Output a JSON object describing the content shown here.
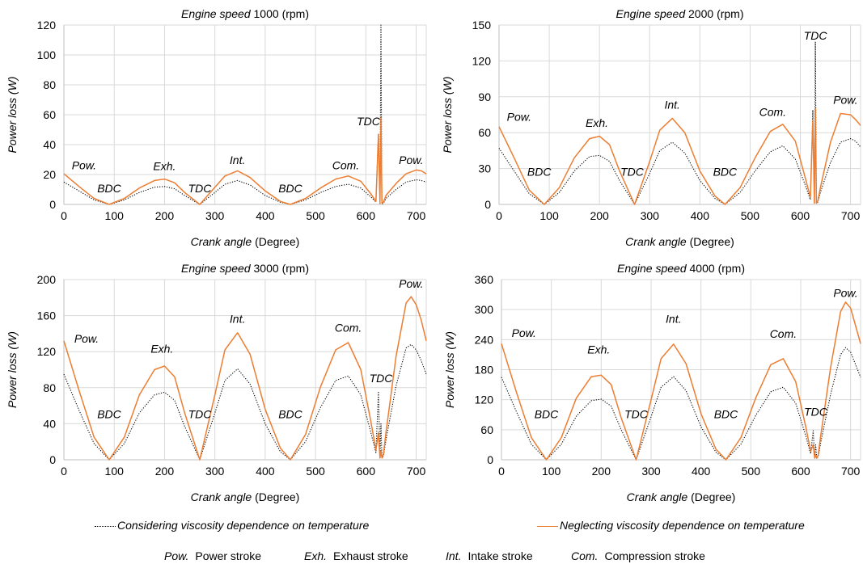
{
  "chart_data": [
    {
      "type": "line",
      "title_italic": "Engine speed",
      "title_number": "1000",
      "title_unit": "(rpm)",
      "ylabel": "Power loss (W)",
      "xlabel_italic": "Crank angle",
      "xlabel_unit": "(Degree)",
      "xlim": [
        0,
        720
      ],
      "ylim": [
        0,
        120
      ],
      "xticks": [
        0,
        100,
        200,
        300,
        400,
        500,
        600,
        700
      ],
      "yticks": [
        0,
        20,
        40,
        60,
        80,
        100,
        120
      ],
      "grid": true,
      "series": [
        {
          "name": "Considering viscosity dependence on temperature",
          "style": "dotted",
          "color": "#000000",
          "x": [
            0,
            30,
            60,
            90,
            120,
            150,
            180,
            200,
            220,
            240,
            270,
            300,
            320,
            345,
            370,
            400,
            430,
            450,
            480,
            510,
            540,
            565,
            590,
            610,
            620,
            625,
            628,
            630,
            632,
            635,
            640,
            660,
            680,
            700,
            710,
            720
          ],
          "y": [
            15,
            9,
            3,
            0,
            3,
            8,
            11.5,
            12,
            10.5,
            6,
            0,
            8,
            13.5,
            16,
            13,
            6,
            1.5,
            0,
            3,
            8,
            12,
            13.5,
            11,
            5,
            1.5,
            47,
            0.5,
            120,
            0.5,
            0.8,
            4,
            10,
            15,
            16.5,
            16,
            15
          ]
        },
        {
          "name": "Neglecting viscosity dependence on temperature",
          "style": "solid",
          "color": "#ED7D31",
          "x": [
            0,
            30,
            60,
            90,
            120,
            150,
            180,
            200,
            220,
            240,
            270,
            300,
            320,
            345,
            370,
            400,
            430,
            450,
            480,
            510,
            540,
            565,
            590,
            610,
            620,
            625,
            628,
            630,
            632,
            635,
            640,
            660,
            680,
            700,
            710,
            720
          ],
          "y": [
            20.5,
            12,
            4,
            0,
            4,
            11,
            16,
            17,
            14.5,
            8,
            0,
            11.5,
            19,
            22.5,
            18,
            9,
            2,
            0,
            4,
            11,
            17,
            19,
            15.5,
            7,
            2,
            47,
            0.5,
            58,
            1,
            1.5,
            6,
            14,
            20.5,
            23,
            22.5,
            20.5
          ]
        }
      ],
      "annotations": [
        {
          "text": "Pow.",
          "x": 40,
          "y": 23.5
        },
        {
          "text": "BDC",
          "x": 90,
          "y": 8
        },
        {
          "text": "Exh.",
          "x": 200,
          "y": 23
        },
        {
          "text": "TDC",
          "x": 270,
          "y": 8
        },
        {
          "text": "Int.",
          "x": 345,
          "y": 27
        },
        {
          "text": "BDC",
          "x": 450,
          "y": 8
        },
        {
          "text": "Com.",
          "x": 560,
          "y": 23.5
        },
        {
          "text": "TDC",
          "x": 605,
          "y": 53
        },
        {
          "text": "Pow.",
          "x": 690,
          "y": 27
        }
      ]
    },
    {
      "type": "line",
      "title_italic": "Engine speed",
      "title_number": "2000",
      "title_unit": "(rpm)",
      "ylabel": "Power loss (W)",
      "xlabel_italic": "Crank angle",
      "xlabel_unit": "(Degree)",
      "xlim": [
        0,
        720
      ],
      "ylim": [
        0,
        150
      ],
      "xticks": [
        0,
        100,
        200,
        300,
        400,
        500,
        600,
        700
      ],
      "yticks": [
        0,
        30,
        60,
        90,
        120,
        150
      ],
      "grid": true,
      "series": [
        {
          "name": "Considering viscosity dependence on temperature",
          "style": "dotted",
          "color": "#000000",
          "x": [
            0,
            30,
            60,
            90,
            120,
            150,
            180,
            200,
            220,
            240,
            270,
            300,
            320,
            345,
            370,
            400,
            430,
            450,
            480,
            510,
            540,
            565,
            590,
            610,
            620,
            625,
            628,
            630,
            632,
            635,
            640,
            660,
            680,
            700,
            710,
            720
          ],
          "y": [
            47,
            28,
            9,
            0,
            10,
            28,
            40,
            41,
            36,
            20,
            0,
            26,
            45,
            52,
            43,
            20,
            5,
            0,
            10,
            28,
            44,
            49,
            38,
            16,
            4,
            79,
            1,
            136,
            1,
            2,
            10,
            35,
            52,
            55,
            53,
            48
          ]
        },
        {
          "name": "Neglecting viscosity dependence on temperature",
          "style": "solid",
          "color": "#ED7D31",
          "x": [
            0,
            30,
            60,
            90,
            120,
            150,
            180,
            200,
            220,
            240,
            270,
            300,
            320,
            345,
            370,
            400,
            430,
            450,
            480,
            510,
            540,
            565,
            590,
            610,
            620,
            625,
            628,
            630,
            632,
            635,
            640,
            660,
            680,
            700,
            710,
            720
          ],
          "y": [
            65,
            39,
            12,
            0,
            14,
            39,
            55,
            57,
            50,
            28,
            0,
            36,
            62,
            72,
            60,
            28,
            7,
            0,
            14,
            39,
            61,
            67,
            53,
            22,
            6,
            70,
            1,
            80,
            1,
            3,
            14,
            52,
            76,
            75,
            71,
            66
          ]
        }
      ],
      "annotations": [
        {
          "text": "Pow.",
          "x": 40,
          "y": 70
        },
        {
          "text": "BDC",
          "x": 80,
          "y": 24
        },
        {
          "text": "Exh.",
          "x": 195,
          "y": 65
        },
        {
          "text": "TDC",
          "x": 265,
          "y": 24
        },
        {
          "text": "Int.",
          "x": 345,
          "y": 80
        },
        {
          "text": "BDC",
          "x": 450,
          "y": 24
        },
        {
          "text": "Com.",
          "x": 545,
          "y": 74
        },
        {
          "text": "TDC",
          "x": 630,
          "y": 138
        },
        {
          "text": "Pow.",
          "x": 690,
          "y": 84
        }
      ]
    },
    {
      "type": "line",
      "title_italic": "Engine speed",
      "title_number": "3000",
      "title_unit": "(rpm)",
      "ylabel": "Power loss (W)",
      "xlabel_italic": "Crank angle",
      "xlabel_unit": "(Degree)",
      "xlim": [
        0,
        720
      ],
      "ylim": [
        0,
        200
      ],
      "xticks": [
        0,
        100,
        200,
        300,
        400,
        500,
        600,
        700
      ],
      "yticks": [
        0,
        40,
        80,
        120,
        160,
        200
      ],
      "grid": true,
      "series": [
        {
          "name": "Considering viscosity dependence on temperature",
          "style": "dotted",
          "color": "#000000",
          "x": [
            0,
            30,
            60,
            90,
            120,
            150,
            180,
            200,
            220,
            240,
            270,
            300,
            320,
            345,
            370,
            400,
            430,
            450,
            480,
            510,
            540,
            565,
            590,
            610,
            620,
            625,
            628,
            630,
            632,
            635,
            640,
            660,
            680,
            690,
            700,
            710,
            720
          ],
          "y": [
            95,
            55,
            18,
            0,
            18,
            52,
            72,
            75,
            66,
            37,
            0,
            52,
            88,
            101,
            84,
            40,
            9,
            0,
            20,
            58,
            88,
            93,
            72,
            30,
            8,
            76,
            2,
            40,
            2,
            4,
            22,
            82,
            124,
            128,
            122,
            110,
            95
          ]
        },
        {
          "name": "Neglecting viscosity dependence on temperature",
          "style": "solid",
          "color": "#ED7D31",
          "x": [
            0,
            30,
            60,
            90,
            120,
            150,
            180,
            200,
            220,
            240,
            270,
            300,
            320,
            345,
            370,
            400,
            430,
            450,
            480,
            510,
            540,
            565,
            590,
            610,
            620,
            625,
            628,
            630,
            632,
            635,
            640,
            660,
            680,
            690,
            700,
            710,
            720
          ],
          "y": [
            132,
            77,
            25,
            0,
            25,
            72,
            100,
            104,
            92,
            52,
            0,
            72,
            122,
            141,
            117,
            56,
            13,
            0,
            28,
            81,
            122,
            130,
            100,
            42,
            11,
            30,
            2,
            10,
            2,
            6,
            30,
            115,
            174,
            181,
            172,
            155,
            132
          ]
        }
      ],
      "annotations": [
        {
          "text": "Pow.",
          "x": 45,
          "y": 130
        },
        {
          "text": "BDC",
          "x": 90,
          "y": 46
        },
        {
          "text": "Exh.",
          "x": 195,
          "y": 119
        },
        {
          "text": "TDC",
          "x": 270,
          "y": 46
        },
        {
          "text": "Int.",
          "x": 345,
          "y": 152
        },
        {
          "text": "BDC",
          "x": 450,
          "y": 46
        },
        {
          "text": "Com.",
          "x": 565,
          "y": 142
        },
        {
          "text": "TDC",
          "x": 630,
          "y": 86
        },
        {
          "text": "Pow.",
          "x": 690,
          "y": 191
        }
      ]
    },
    {
      "type": "line",
      "title_italic": "Engine speed",
      "title_number": "4000",
      "title_unit": "(rpm)",
      "ylabel": "Power loss (W)",
      "xlabel_italic": "Crank angle",
      "xlabel_unit": "(Degree)",
      "xlim": [
        0,
        720
      ],
      "ylim": [
        0,
        360
      ],
      "xticks": [
        0,
        100,
        200,
        300,
        400,
        500,
        600,
        700
      ],
      "yticks": [
        0,
        60,
        120,
        180,
        240,
        300,
        360
      ],
      "grid": true,
      "series": [
        {
          "name": "Considering viscosity dependence on temperature",
          "style": "dotted",
          "color": "#000000",
          "x": [
            0,
            30,
            60,
            90,
            120,
            150,
            180,
            200,
            220,
            240,
            270,
            300,
            320,
            345,
            370,
            400,
            430,
            450,
            480,
            510,
            540,
            565,
            590,
            610,
            620,
            625,
            628,
            630,
            632,
            635,
            640,
            660,
            680,
            690,
            700,
            710,
            720
          ],
          "y": [
            165,
            96,
            31,
            0,
            31,
            87,
            118,
            121,
            107,
            60,
            0,
            86,
            145,
            166,
            138,
            66,
            15,
            0,
            31,
            89,
            136,
            145,
            113,
            48,
            12,
            58,
            3,
            30,
            3,
            6,
            34,
            131,
            210,
            224,
            215,
            190,
            165
          ]
        },
        {
          "name": "Neglecting viscosity dependence on temperature",
          "style": "solid",
          "color": "#ED7D31",
          "x": [
            0,
            30,
            60,
            90,
            120,
            150,
            180,
            200,
            220,
            240,
            270,
            300,
            320,
            345,
            370,
            400,
            430,
            450,
            480,
            510,
            540,
            565,
            590,
            610,
            620,
            625,
            628,
            630,
            632,
            635,
            640,
            660,
            680,
            690,
            700,
            710,
            720
          ],
          "y": [
            232,
            135,
            44,
            0,
            44,
            123,
            166,
            169,
            150,
            84,
            0,
            120,
            202,
            231,
            192,
            92,
            21,
            0,
            44,
            124,
            190,
            202,
            156,
            66,
            17,
            30,
            3,
            10,
            3,
            9,
            48,
            185,
            296,
            315,
            303,
            268,
            232
          ]
        }
      ],
      "annotations": [
        {
          "text": "Pow.",
          "x": 45,
          "y": 245
        },
        {
          "text": "BDC",
          "x": 90,
          "y": 83
        },
        {
          "text": "Exh.",
          "x": 195,
          "y": 212
        },
        {
          "text": "TDC",
          "x": 270,
          "y": 83
        },
        {
          "text": "Int.",
          "x": 345,
          "y": 274
        },
        {
          "text": "BDC",
          "x": 450,
          "y": 83
        },
        {
          "text": "Com.",
          "x": 565,
          "y": 244
        },
        {
          "text": "TDC",
          "x": 630,
          "y": 88
        },
        {
          "text": "Pow.",
          "x": 690,
          "y": 325
        }
      ]
    }
  ],
  "legend": {
    "dotted_label": "Considering viscosity dependence on temperature",
    "solid_label": "Neglecting viscosity dependence on temperature"
  },
  "abbreviations": [
    {
      "abbr": "Pow.",
      "meaning": "Power stroke"
    },
    {
      "abbr": "Exh.",
      "meaning": "Exhaust stroke"
    },
    {
      "abbr": "Int.",
      "meaning": "Intake stroke"
    },
    {
      "abbr": "Com.",
      "meaning": "Compression stroke"
    }
  ],
  "colors": {
    "dotted": "#000000",
    "solid": "#ED7D31",
    "grid": "#D9D9D9",
    "axis": "#BFBFBF"
  }
}
